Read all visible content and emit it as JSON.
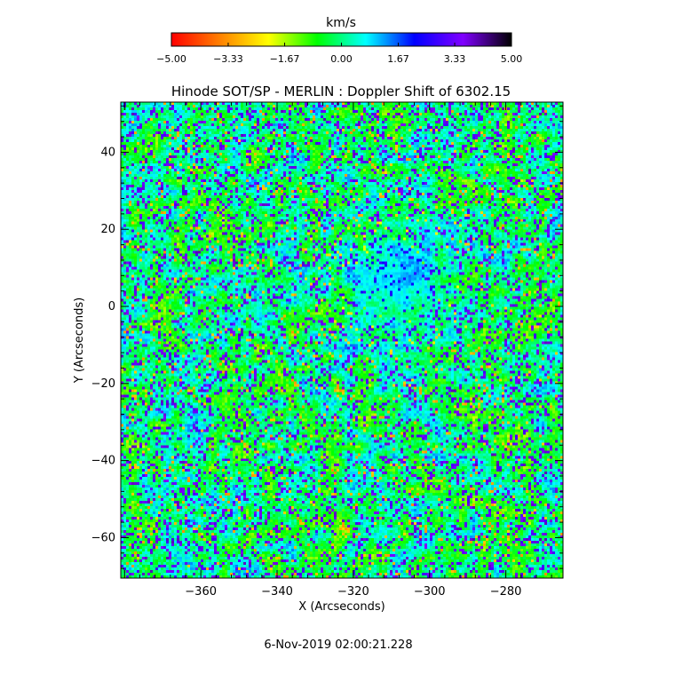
{
  "chart_data": {
    "type": "heatmap",
    "title": "Hinode SOT/SP - MERLIN : Doppler Shift of 6302.15",
    "xlabel": "X (Arcseconds)",
    "ylabel": "Y (Arcseconds)",
    "xlim": [
      -381,
      -265
    ],
    "ylim": [
      -70.5,
      53
    ],
    "x_ticks": [
      -360,
      -340,
      -320,
      -300,
      -280
    ],
    "x_tick_labels": [
      "−360",
      "−340",
      "−320",
      "−300",
      "−280"
    ],
    "y_ticks": [
      40,
      20,
      0,
      -20,
      -40,
      -60
    ],
    "y_tick_labels": [
      "40",
      "20",
      "0",
      "−20",
      "−40",
      "−60"
    ],
    "colorbar": {
      "label": "km/s",
      "range": [
        -5.0,
        5.0
      ],
      "ticks": [
        -5.0,
        -3.33,
        -1.67,
        0.0,
        1.67,
        3.33,
        5.0
      ],
      "tick_labels": [
        "−5.00",
        "−3.33",
        "−1.67",
        "0.00",
        "1.67",
        "3.33",
        "5.00"
      ],
      "colormap": [
        "#ff0000",
        "#ff8000",
        "#ffff00",
        "#00ff00",
        "#00ffff",
        "#0000ff",
        "#8000ff",
        "#000000"
      ]
    },
    "field_description": "granulation Doppler pattern; mostly -1.5 to +1.5 km/s, blue intergranular lanes near +3 km/s, yellow patches near -2.5 km/s, smoother cyan region near x -310, y 10",
    "timestamp": "6-Nov-2019 02:00:21.228"
  }
}
